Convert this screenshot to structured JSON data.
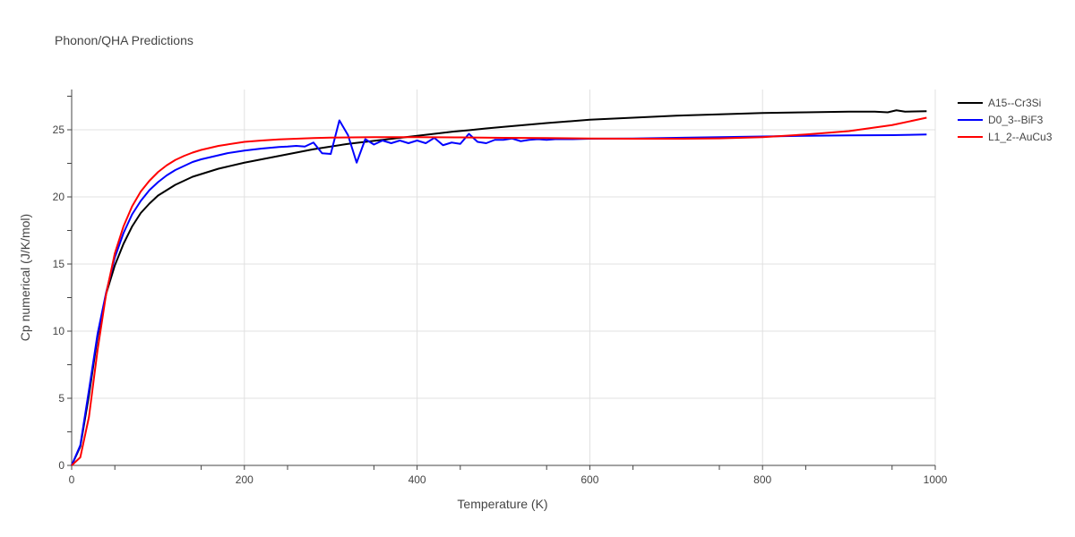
{
  "chart_data": {
    "type": "line",
    "title": "Phonon/QHA Predictions",
    "xlabel": "Temperature (K)",
    "ylabel": "Cp numerical (J/K/mol)",
    "xlim": [
      0,
      1000
    ],
    "ylim": [
      0,
      28
    ],
    "xticks": [
      0,
      200,
      400,
      600,
      800,
      1000
    ],
    "yticks": [
      0,
      5,
      10,
      15,
      20,
      25
    ],
    "grid": true,
    "legend_position": "top-right",
    "series": [
      {
        "name": "A15--Cr3Si",
        "color": "#000000",
        "x": [
          0,
          10,
          20,
          30,
          40,
          50,
          60,
          70,
          80,
          90,
          100,
          110,
          120,
          130,
          140,
          150,
          160,
          170,
          180,
          200,
          220,
          240,
          260,
          280,
          300,
          320,
          340,
          360,
          380,
          400,
          420,
          440,
          460,
          480,
          500,
          550,
          600,
          650,
          700,
          750,
          800,
          850,
          900,
          930,
          945,
          955,
          965,
          990
        ],
        "y": [
          0,
          1.4,
          5.2,
          9.6,
          12.8,
          14.9,
          16.5,
          17.8,
          18.8,
          19.5,
          20.1,
          20.5,
          20.9,
          21.2,
          21.5,
          21.7,
          21.9,
          22.1,
          22.25,
          22.55,
          22.8,
          23.05,
          23.3,
          23.55,
          23.75,
          23.95,
          24.1,
          24.25,
          24.4,
          24.55,
          24.7,
          24.85,
          24.97,
          25.1,
          25.22,
          25.5,
          25.75,
          25.9,
          26.05,
          26.15,
          26.25,
          26.3,
          26.35,
          26.35,
          26.3,
          26.45,
          26.35,
          26.38
        ]
      },
      {
        "name": "D0_3--BiF3",
        "color": "#0000ff",
        "x": [
          0,
          10,
          20,
          30,
          40,
          50,
          60,
          70,
          80,
          90,
          100,
          110,
          120,
          130,
          140,
          150,
          160,
          170,
          180,
          200,
          220,
          240,
          250,
          260,
          270,
          280,
          290,
          300,
          310,
          320,
          330,
          340,
          350,
          360,
          370,
          380,
          390,
          400,
          410,
          420,
          430,
          440,
          450,
          460,
          470,
          480,
          490,
          500,
          510,
          520,
          530,
          540,
          550,
          560,
          570,
          580,
          590,
          600,
          650,
          700,
          750,
          800,
          850,
          900,
          950,
          990
        ],
        "y": [
          0,
          1.5,
          5.6,
          9.8,
          12.9,
          15.5,
          17.3,
          18.7,
          19.7,
          20.5,
          21.1,
          21.6,
          22.0,
          22.3,
          22.6,
          22.8,
          22.95,
          23.1,
          23.25,
          23.45,
          23.6,
          23.72,
          23.75,
          23.8,
          23.75,
          24.05,
          23.25,
          23.2,
          25.7,
          24.6,
          22.55,
          24.3,
          23.9,
          24.2,
          24.0,
          24.2,
          24.0,
          24.2,
          24.0,
          24.4,
          23.85,
          24.05,
          23.95,
          24.7,
          24.1,
          24.0,
          24.25,
          24.25,
          24.35,
          24.15,
          24.25,
          24.3,
          24.25,
          24.3,
          24.3,
          24.3,
          24.32,
          24.33,
          24.35,
          24.4,
          24.45,
          24.5,
          24.55,
          24.58,
          24.6,
          24.65
        ]
      },
      {
        "name": "L1_2--AuCu3",
        "color": "#ff0000",
        "x": [
          0,
          10,
          20,
          30,
          40,
          50,
          60,
          70,
          80,
          90,
          100,
          110,
          120,
          130,
          140,
          150,
          160,
          170,
          180,
          200,
          220,
          240,
          260,
          280,
          300,
          350,
          400,
          450,
          500,
          550,
          600,
          650,
          700,
          750,
          800,
          850,
          900,
          950,
          990
        ],
        "y": [
          0,
          0.6,
          3.6,
          8.6,
          12.8,
          15.8,
          17.8,
          19.3,
          20.4,
          21.2,
          21.85,
          22.35,
          22.75,
          23.05,
          23.3,
          23.5,
          23.65,
          23.8,
          23.9,
          24.1,
          24.2,
          24.28,
          24.33,
          24.38,
          24.42,
          24.45,
          24.45,
          24.43,
          24.4,
          24.38,
          24.35,
          24.33,
          24.33,
          24.36,
          24.45,
          24.65,
          24.9,
          25.35,
          25.9
        ]
      }
    ]
  }
}
